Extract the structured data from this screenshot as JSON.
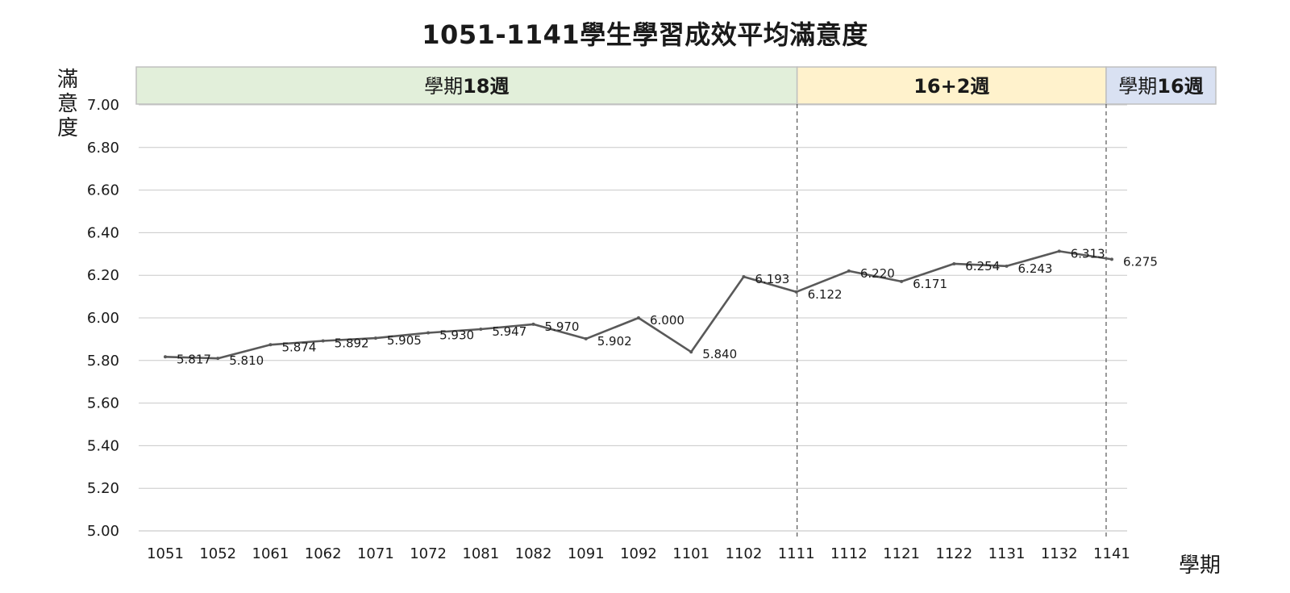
{
  "chart_data": {
    "type": "line",
    "title": "1051-1141學生學習成效平均滿意度",
    "xlabel": "學期",
    "ylabel": "滿意度",
    "categories": [
      "1051",
      "1052",
      "1061",
      "1062",
      "1071",
      "1072",
      "1081",
      "1082",
      "1091",
      "1092",
      "1101",
      "1102",
      "1111",
      "1112",
      "1121",
      "1122",
      "1131",
      "1132",
      "1141"
    ],
    "series": [
      {
        "values": [
          5.817,
          5.81,
          5.874,
          5.892,
          5.905,
          5.93,
          5.947,
          5.97,
          5.902,
          6.0,
          5.84,
          6.193,
          6.122,
          6.22,
          6.171,
          6.254,
          6.243,
          6.313,
          6.275
        ],
        "labels": [
          "5.817",
          "5.810",
          "5.874",
          "5.892",
          "5.905",
          "5.930",
          "5.947",
          "5.970",
          "5.902",
          "6.000",
          "5.840",
          "6.193",
          "6.122",
          "6.220",
          "6.171",
          "6.254",
          "6.243",
          "6.313",
          "6.275"
        ],
        "color": "#595959"
      }
    ],
    "ylim": [
      5.0,
      7.0
    ],
    "yticks": [
      "5.00",
      "5.20",
      "5.40",
      "5.60",
      "5.80",
      "6.00",
      "6.20",
      "6.40",
      "6.60",
      "6.80",
      "7.00"
    ],
    "grid": true,
    "legend": "none",
    "bands": [
      {
        "label_plain": "學期",
        "label_bold": "18週",
        "start": "1051",
        "end": "1111",
        "color": "#e2efda"
      },
      {
        "label_plain": "",
        "label_bold": "16+2週",
        "start": "1111",
        "end": "1141",
        "color": "#fff2cc"
      },
      {
        "label_plain": "學期",
        "label_bold": "16週",
        "start": "1141",
        "end": "",
        "color": "#d9e1f2"
      }
    ]
  }
}
